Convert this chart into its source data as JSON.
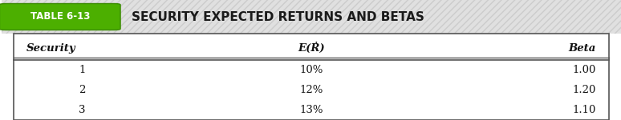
{
  "table_label": "TABLE 6-13",
  "table_label_bg": "#4caf00",
  "table_label_color": "#ffffff",
  "title": "SECURITY EXPECTED RETURNS AND BETAS",
  "title_color": "#1a1a1a",
  "header": [
    "Security",
    "E(Ṙ)",
    "Beta"
  ],
  "rows": [
    [
      "1",
      "10%",
      "1.00"
    ],
    [
      "2",
      "12%",
      "1.20"
    ],
    [
      "3",
      "13%",
      "1.10"
    ]
  ],
  "bg_color": "#ffffff",
  "border_color": "#555555",
  "title_bg": "#e8e8e8",
  "hatch_color": "#cccccc"
}
